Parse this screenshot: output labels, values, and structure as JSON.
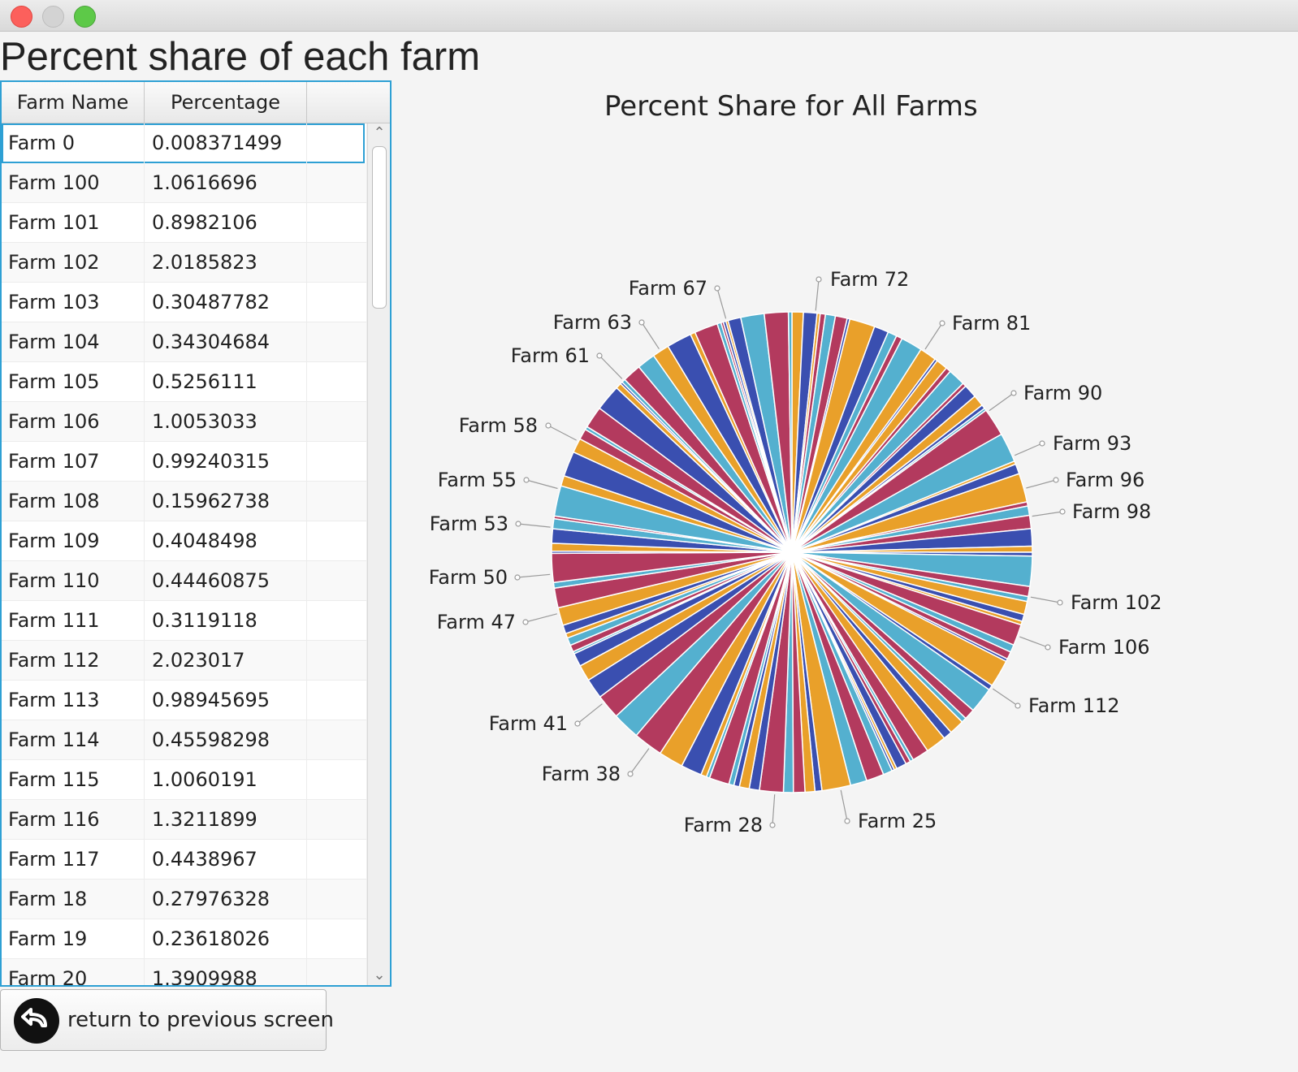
{
  "page_title": "Percent share of each farm",
  "table": {
    "columns": [
      "Farm Name",
      "Percentage"
    ],
    "rows": [
      {
        "name": "Farm 0",
        "pct": "0.008371499"
      },
      {
        "name": "Farm 100",
        "pct": "1.0616696"
      },
      {
        "name": "Farm 101",
        "pct": "0.8982106"
      },
      {
        "name": "Farm 102",
        "pct": "2.0185823"
      },
      {
        "name": "Farm 103",
        "pct": "0.30487782"
      },
      {
        "name": "Farm 104",
        "pct": "0.34304684"
      },
      {
        "name": "Farm 105",
        "pct": "0.5256111"
      },
      {
        "name": "Farm 106",
        "pct": "1.0053033"
      },
      {
        "name": "Farm 107",
        "pct": "0.99240315"
      },
      {
        "name": "Farm 108",
        "pct": "0.15962738"
      },
      {
        "name": "Farm 109",
        "pct": "0.4048498"
      },
      {
        "name": "Farm 110",
        "pct": "0.44460875"
      },
      {
        "name": "Farm 111",
        "pct": "0.3119118"
      },
      {
        "name": "Farm 112",
        "pct": "2.023017"
      },
      {
        "name": "Farm 113",
        "pct": "0.98945695"
      },
      {
        "name": "Farm 114",
        "pct": "0.45598298"
      },
      {
        "name": "Farm 115",
        "pct": "1.0060191"
      },
      {
        "name": "Farm 116",
        "pct": "1.3211899"
      },
      {
        "name": "Farm 117",
        "pct": "0.4438967"
      },
      {
        "name": "Farm 18",
        "pct": "0.27976328"
      },
      {
        "name": "Farm 19",
        "pct": "0.23618026"
      },
      {
        "name": "Farm 20",
        "pct": "1.3909988"
      }
    ],
    "selected_row": 0
  },
  "back_button": {
    "label": "return to previous screen",
    "icon": "back-arrow-icon"
  },
  "chart_data": {
    "type": "pie",
    "title": "Percent Share for All Farms",
    "labels": [
      "Farm 72",
      "Farm 81",
      "Farm 90",
      "Farm 93",
      "Farm 96",
      "Farm 98",
      "Farm 102",
      "Farm 106",
      "Farm 112",
      "Farm 25",
      "Farm 28",
      "Farm 38",
      "Farm 41",
      "Farm 47",
      "Farm 50",
      "Farm 53",
      "Farm 55",
      "Farm 58",
      "Farm 61",
      "Farm 63",
      "Farm 67"
    ],
    "palette": [
      "#e9a02a",
      "#3b9bbd",
      "#d15a34",
      "#b33a5e",
      "#8e3bb4",
      "#54a84d",
      "#3a4fb0",
      "#7b7b7b",
      "#e8703e",
      "#54b0cf",
      "#f2b443",
      "#c8446b"
    ]
  }
}
